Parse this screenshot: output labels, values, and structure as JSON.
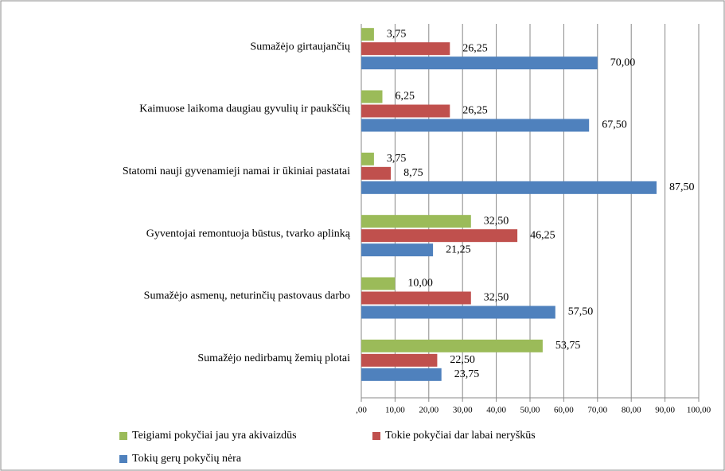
{
  "chart_data": {
    "type": "hbar",
    "categories": [
      "Sumažėjo girtaujančių",
      "Kaimuose laikoma daugiau gyvulių ir paukščių",
      "Statomi nauji gyvenamieji namai ir ūkiniai pastatai",
      "Gyventojai remontuoja būstus, tvarko aplinką",
      "Sumažėjo asmenų, neturinčių pastovaus darbo",
      "Sumažėjo nedirbamų žemių plotai"
    ],
    "series": [
      {
        "name": "Teigiami pokyčiai jau yra akivaizdūs",
        "color": "#9bbb59",
        "values": [
          3.75,
          6.25,
          3.75,
          32.5,
          10,
          53.75
        ],
        "value_labels": [
          "3,75",
          "6,25",
          "3,75",
          "32,50",
          "10,00",
          "53,75"
        ]
      },
      {
        "name": "Tokie pokyčiai dar labai neryškūs",
        "color": "#c0504d",
        "values": [
          26.25,
          26.25,
          8.75,
          46.25,
          32.5,
          22.5
        ],
        "value_labels": [
          "26,25",
          "26,25",
          "8,75",
          "46,25",
          "32,50",
          "22,50"
        ]
      },
      {
        "name": "Tokių gerų pokyčių nėra",
        "color": "#4f81bd",
        "values": [
          70,
          67.5,
          87.5,
          21.25,
          57.5,
          23.75
        ],
        "value_labels": [
          "70,00",
          "67,50",
          "87,50",
          "21,25",
          "57,50",
          "23,75"
        ]
      }
    ],
    "xlim": [
      0,
      100
    ],
    "xticks": [
      {
        "value": 0,
        "label": ",00"
      },
      {
        "value": 10,
        "label": "10,00"
      },
      {
        "value": 20,
        "label": "20,00"
      },
      {
        "value": 30,
        "label": "30,00"
      },
      {
        "value": 40,
        "label": "40,00"
      },
      {
        "value": 50,
        "label": "50,00"
      },
      {
        "value": 60,
        "label": "60,00"
      },
      {
        "value": 70,
        "label": "70,00"
      },
      {
        "value": 80,
        "label": "80,00"
      },
      {
        "value": 90,
        "label": "90,00"
      },
      {
        "value": 100,
        "label": "100,00"
      }
    ],
    "grid": true,
    "legend": "bottom"
  }
}
